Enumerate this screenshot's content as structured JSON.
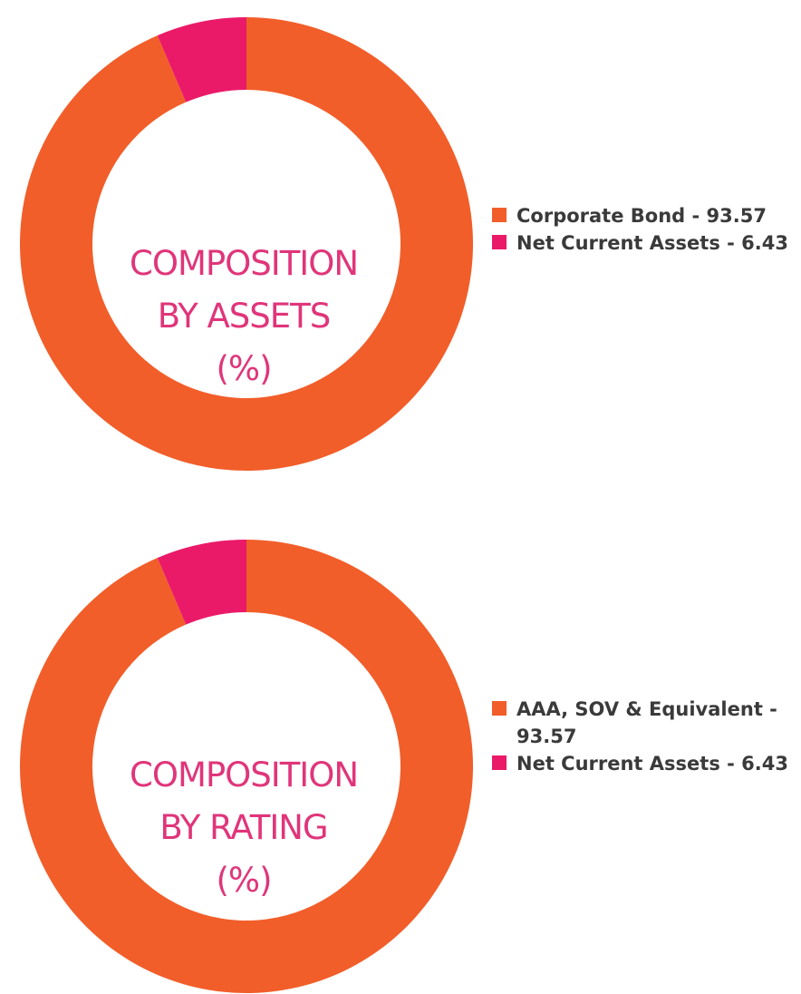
{
  "chart_data": [
    {
      "type": "pie",
      "title_lines": [
        "COMPOSITION",
        "BY ASSETS",
        "(%)"
      ],
      "categories": [
        "Corporate Bond",
        "Net Current Assets"
      ],
      "values": [
        93.57,
        6.43
      ],
      "legend_labels": [
        "Corporate Bond - 93.57",
        "Net Current Assets - 6.43"
      ],
      "colors": [
        "#f15e2a",
        "#ea1a69"
      ],
      "legend_position": "right"
    },
    {
      "type": "pie",
      "title_lines": [
        "COMPOSITION",
        "BY RATING",
        "(%)"
      ],
      "categories": [
        "AAA, SOV & Equivalent",
        "Net Current Assets"
      ],
      "values": [
        93.57,
        6.43
      ],
      "legend_labels": [
        "AAA, SOV & Equivalent - 93.57",
        "Net Current Assets - 6.43"
      ],
      "colors": [
        "#f15e2a",
        "#ea1a69"
      ],
      "legend_position": "right"
    }
  ]
}
